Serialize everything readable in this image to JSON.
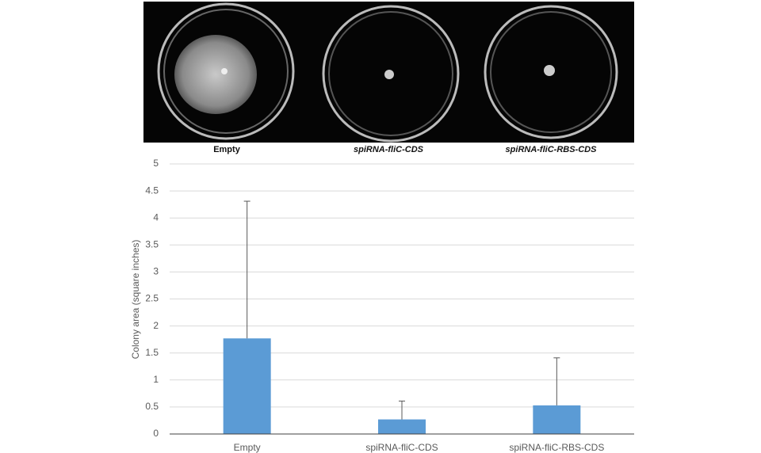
{
  "image": {
    "labels": [
      "Empty",
      "spiRNA-fliC-CDS",
      "spiRNA-fliC-RBS-CDS"
    ]
  },
  "chart_data": {
    "type": "bar",
    "y_label": "Colony area (square inches)",
    "categories": [
      "Empty",
      "spiRNA-fliC-CDS",
      "spiRNA-fliC-RBS-CDS"
    ],
    "values": [
      1.77,
      0.27,
      0.53
    ],
    "errors": [
      2.54,
      0.34,
      0.88
    ],
    "color": "#5b9bd5",
    "ylim": [
      0,
      5
    ],
    "yticks": [
      0,
      0.5,
      1,
      1.5,
      2,
      2.5,
      3,
      3.5,
      4,
      4.5,
      5
    ],
    "grid": true
  }
}
